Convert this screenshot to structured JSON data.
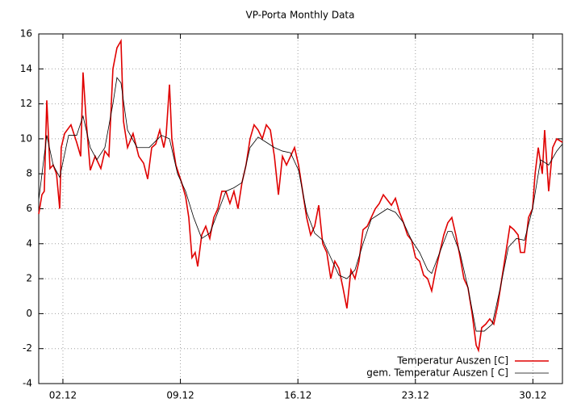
{
  "chart_data": {
    "type": "line",
    "title": "VP-Porta Monthly Data",
    "xlim": [
      0.56,
      31.76
    ],
    "xticks": [
      {
        "value": 2,
        "label": "02.12"
      },
      {
        "value": 9,
        "label": "09.12"
      },
      {
        "value": 16,
        "label": "16.12"
      },
      {
        "value": 23,
        "label": "23.12"
      },
      {
        "value": 30,
        "label": "30.12"
      }
    ],
    "ylim": [
      -4,
      16
    ],
    "yticks": [
      -4,
      -2,
      0,
      2,
      4,
      6,
      8,
      10,
      12,
      14,
      16
    ],
    "grid": true,
    "legend": "bottom-right",
    "series": [
      {
        "name": "Temperatur Auszen [C]",
        "color": "#e00000",
        "x": [
          0.56,
          0.75,
          0.89,
          1.04,
          1.23,
          1.42,
          1.62,
          1.81,
          1.9,
          2.1,
          2.48,
          2.82,
          3.06,
          3.2,
          3.39,
          3.63,
          3.92,
          4.26,
          4.5,
          4.74,
          4.98,
          5.22,
          5.46,
          5.61,
          5.85,
          6.18,
          6.52,
          6.81,
          7.05,
          7.29,
          7.53,
          7.77,
          8.01,
          8.15,
          8.35,
          8.49,
          8.73,
          9.07,
          9.31,
          9.5,
          9.69,
          9.88,
          10.03,
          10.27,
          10.51,
          10.75,
          10.99,
          11.23,
          11.47,
          11.71,
          11.95,
          12.19,
          12.43,
          12.67,
          12.91,
          13.15,
          13.39,
          13.63,
          13.88,
          14.12,
          14.36,
          14.6,
          14.84,
          15.08,
          15.32,
          15.56,
          15.8,
          16.04,
          16.28,
          16.52,
          16.76,
          17.0,
          17.24,
          17.48,
          17.72,
          17.96,
          18.2,
          18.44,
          18.68,
          18.92,
          19.16,
          19.4,
          19.64,
          19.88,
          20.13,
          20.37,
          20.61,
          20.85,
          21.09,
          21.33,
          21.57,
          21.81,
          22.05,
          22.29,
          22.53,
          22.77,
          23.01,
          23.25,
          23.49,
          23.73,
          23.97,
          24.21,
          24.45,
          24.69,
          24.93,
          25.17,
          25.41,
          25.65,
          25.89,
          26.13,
          26.38,
          26.62,
          26.76,
          26.95,
          27.19,
          27.43,
          27.67,
          27.91,
          28.15,
          28.39,
          28.63,
          28.87,
          29.12,
          29.26,
          29.5,
          29.74,
          29.98,
          30.13,
          30.32,
          30.56,
          30.7,
          30.94,
          31.18,
          31.42,
          31.76
        ],
        "values": [
          5.7,
          6.8,
          7,
          12.2,
          8.3,
          8.5,
          8,
          6,
          9.5,
          10.3,
          10.8,
          9.8,
          9,
          13.8,
          11,
          8.2,
          9,
          8.3,
          9.3,
          9,
          14,
          15.2,
          15.6,
          11,
          9.5,
          10.3,
          9,
          8.6,
          7.7,
          9.5,
          9.7,
          10.5,
          9.5,
          10.2,
          13.1,
          10,
          8.5,
          7.5,
          6.7,
          5.5,
          3.2,
          3.5,
          2.7,
          4.5,
          5,
          4.3,
          5.5,
          6,
          7,
          7,
          6.3,
          7,
          6,
          7.5,
          8.5,
          10,
          10.8,
          10.5,
          10,
          10.8,
          10.5,
          9,
          6.8,
          9,
          8.5,
          9,
          9.5,
          8.5,
          7,
          5.5,
          4.5,
          5,
          6.2,
          4,
          3.5,
          2,
          3,
          2.6,
          1.5,
          0.3,
          2.5,
          2,
          3,
          4.8,
          5,
          5.5,
          6,
          6.3,
          6.8,
          6.5,
          6.2,
          6.6,
          5.8,
          5.2,
          4.5,
          4.2,
          3.2,
          3,
          2.2,
          2,
          1.3,
          2.5,
          3.5,
          4.5,
          5.2,
          5.5,
          4.5,
          3.3,
          2,
          1.5,
          0,
          -1.8,
          -2.1,
          -0.8,
          -0.6,
          -0.3,
          -0.6,
          0.5,
          2,
          3.5,
          5,
          4.8,
          4.5,
          3.5,
          3.5,
          5.5,
          6,
          8,
          9.5,
          8,
          10.5,
          7,
          9.5,
          10,
          9.8
        ]
      },
      {
        "name": "gem. Temperatur Auszen [ C]",
        "color": "#000000",
        "x": [
          0.56,
          1.04,
          1.42,
          1.81,
          2.34,
          2.82,
          3.2,
          3.63,
          4.02,
          4.5,
          4.98,
          5.22,
          5.46,
          5.85,
          6.42,
          7.14,
          7.87,
          8.35,
          8.83,
          9.31,
          9.79,
          10.27,
          10.75,
          11.23,
          11.71,
          12.19,
          12.67,
          13.15,
          13.63,
          14.12,
          14.6,
          15.08,
          15.56,
          16.04,
          16.52,
          17.0,
          17.48,
          17.96,
          18.44,
          18.92,
          19.4,
          19.88,
          20.37,
          20.85,
          21.33,
          21.81,
          22.29,
          22.77,
          23.25,
          23.73,
          23.97,
          24.45,
          24.93,
          25.17,
          25.65,
          26.13,
          26.62,
          27.1,
          27.58,
          28.06,
          28.54,
          29.02,
          29.5,
          29.98,
          30.46,
          30.94,
          31.42,
          31.76
        ],
        "values": [
          6.5,
          10.2,
          8.5,
          7.8,
          10.2,
          10.2,
          11.3,
          9.5,
          8.8,
          9.5,
          12,
          13.5,
          13.2,
          10.5,
          9.5,
          9.5,
          10.2,
          10,
          8,
          7,
          5.5,
          4.3,
          4.6,
          5.8,
          7,
          7.2,
          7.5,
          9.5,
          10.1,
          9.8,
          9.5,
          9.3,
          9.2,
          8.2,
          5.8,
          4.6,
          4.2,
          3.2,
          2.2,
          2,
          2.5,
          4,
          5.4,
          5.7,
          6,
          5.8,
          5.2,
          4.2,
          3.5,
          2.5,
          2.3,
          3.5,
          4.7,
          4.7,
          3.5,
          1.5,
          -1,
          -1,
          -0.6,
          1.5,
          3.8,
          4.3,
          4.2,
          6,
          8.8,
          8.5,
          9.3,
          9.7
        ]
      }
    ]
  }
}
